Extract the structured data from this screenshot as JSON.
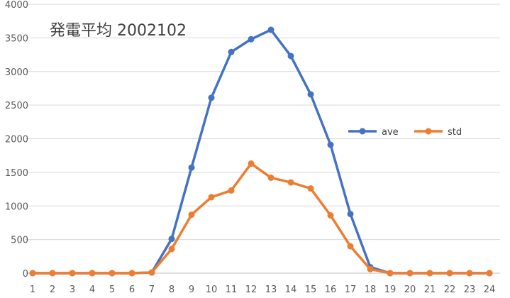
{
  "chart_data": {
    "type": "line",
    "title": "発電平均 2002102",
    "xlabel": "",
    "ylabel": "",
    "x": [
      "1",
      "2",
      "3",
      "4",
      "5",
      "6",
      "7",
      "8",
      "9",
      "10",
      "11",
      "12",
      "13",
      "14",
      "15",
      "16",
      "17",
      "18",
      "19",
      "20",
      "21",
      "22",
      "23",
      "24"
    ],
    "yticks": [
      "0",
      "500",
      "1000",
      "1500",
      "2000",
      "2500",
      "3000",
      "3500",
      "4000"
    ],
    "ylim": [
      0,
      4000
    ],
    "grid": true,
    "legend_position": "right",
    "series": [
      {
        "name": "ave",
        "color": "#4472C4",
        "values": [
          0,
          0,
          0,
          0,
          0,
          0,
          10,
          510,
          1570,
          2610,
          3290,
          3480,
          3620,
          3230,
          2660,
          1910,
          880,
          90,
          0,
          0,
          0,
          0,
          0,
          0
        ]
      },
      {
        "name": "std",
        "color": "#ED7D31",
        "values": [
          0,
          0,
          0,
          0,
          0,
          0,
          10,
          360,
          870,
          1130,
          1230,
          1630,
          1420,
          1350,
          1260,
          860,
          400,
          60,
          0,
          0,
          0,
          0,
          0,
          0
        ]
      }
    ]
  }
}
